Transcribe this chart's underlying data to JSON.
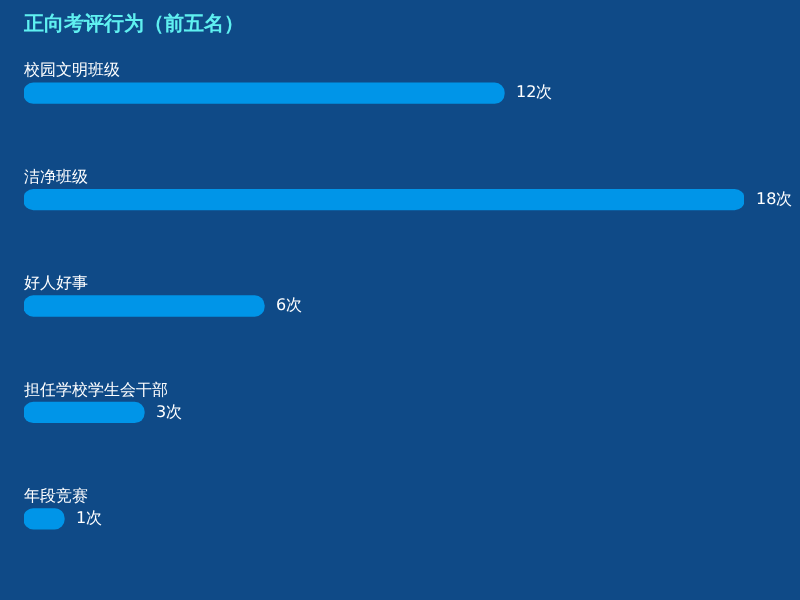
{
  "chart_data": {
    "type": "bar",
    "orientation": "horizontal",
    "title": "正向考评行为（前五名）",
    "categories": [
      "校园文明班级",
      "洁净班级",
      "好人好事",
      "担任学校学生会干部",
      "年段竞赛"
    ],
    "values": [
      12,
      18,
      6,
      3,
      1
    ],
    "value_labels": [
      "12次",
      "18次",
      "6次",
      "3次",
      "1次"
    ],
    "color": "#0095e8",
    "xlim": [
      0,
      18
    ],
    "tick_labels": false,
    "grid": false,
    "legend": false
  }
}
